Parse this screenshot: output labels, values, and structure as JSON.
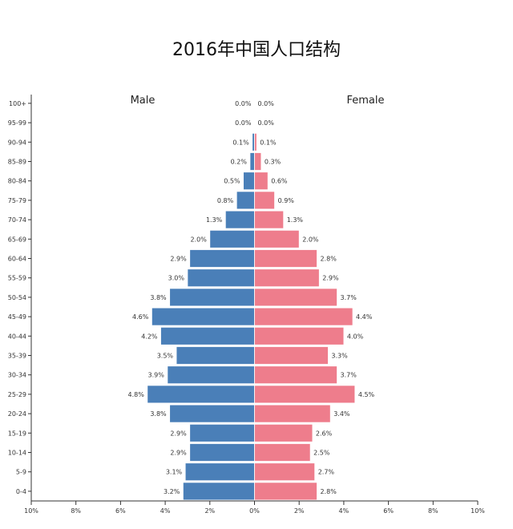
{
  "title": "2016年中国人口结构",
  "chart_data": {
    "type": "bar",
    "orientation": "horizontal-population-pyramid",
    "title": "2016年中国人口结构",
    "categories": [
      "0-4",
      "5-9",
      "10-14",
      "15-19",
      "20-24",
      "25-29",
      "30-34",
      "35-39",
      "40-44",
      "45-49",
      "50-54",
      "55-59",
      "60-64",
      "65-69",
      "70-74",
      "75-79",
      "80-84",
      "85-89",
      "90-94",
      "95-99",
      "100+"
    ],
    "series": [
      {
        "name": "Male",
        "color": "#4a7fb8",
        "values": [
          3.2,
          3.1,
          2.9,
          2.9,
          3.8,
          4.8,
          3.9,
          3.5,
          4.2,
          4.6,
          3.8,
          3.0,
          2.9,
          2.0,
          1.3,
          0.8,
          0.5,
          0.2,
          0.1,
          0.0,
          0.0
        ],
        "labels": [
          "3.2%",
          "3.1%",
          "2.9%",
          "2.9%",
          "3.8%",
          "4.8%",
          "3.9%",
          "3.5%",
          "4.2%",
          "4.6%",
          "3.8%",
          "3.0%",
          "2.9%",
          "2.0%",
          "1.3%",
          "0.8%",
          "0.5%",
          "0.2%",
          "0.1%",
          "0.0%",
          "0.0%"
        ]
      },
      {
        "name": "Female",
        "color": "#ee7d8c",
        "values": [
          2.8,
          2.7,
          2.5,
          2.6,
          3.4,
          4.5,
          3.7,
          3.3,
          4.0,
          4.4,
          3.7,
          2.9,
          2.8,
          2.0,
          1.3,
          0.9,
          0.6,
          0.3,
          0.1,
          0.0,
          0.0
        ],
        "labels": [
          "2.8%",
          "2.7%",
          "2.5%",
          "2.6%",
          "3.4%",
          "4.5%",
          "3.7%",
          "3.3%",
          "4.0%",
          "4.4%",
          "3.7%",
          "2.9%",
          "2.8%",
          "2.0%",
          "1.3%",
          "0.9%",
          "0.6%",
          "0.3%",
          "0.1%",
          "0.0%",
          "0.0%"
        ]
      }
    ],
    "xlim": [
      -10,
      10
    ],
    "x_ticks": [
      -10,
      -8,
      -6,
      -4,
      -2,
      0,
      2,
      4,
      6,
      8,
      10
    ],
    "x_tick_labels": [
      "10%",
      "8%",
      "6%",
      "4%",
      "2%",
      "0%",
      "2%",
      "4%",
      "6%",
      "8%",
      "10%"
    ],
    "grid": false
  }
}
